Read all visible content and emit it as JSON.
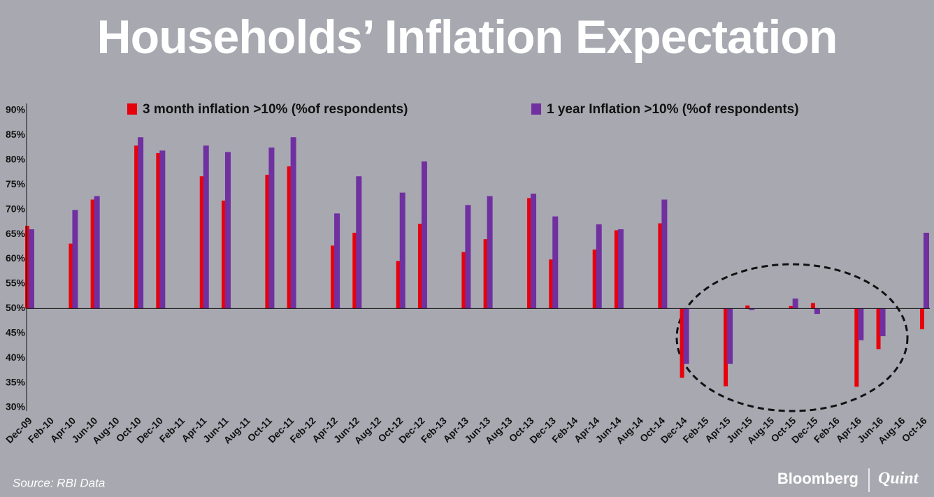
{
  "chart_data": {
    "type": "bar",
    "title": "Households’ Inflation Expectation",
    "categories": [
      "Dec-09",
      "Feb-10",
      "Apr-10",
      "Jun-10",
      "Aug-10",
      "Oct-10",
      "Dec-10",
      "Feb-11",
      "Apr-11",
      "Jun-11",
      "Aug-11",
      "Oct-11",
      "Dec-11",
      "Feb-12",
      "Apr-12",
      "Jun-12",
      "Aug-12",
      "Oct-12",
      "Dec-12",
      "Feb-13",
      "Apr-13",
      "Jun-13",
      "Aug-13",
      "Oct-13",
      "Dec-13",
      "Feb-14",
      "Apr-14",
      "Jun-14",
      "Aug-14",
      "Oct-14",
      "Dec-14",
      "Feb-15",
      "Apr-15",
      "Jun-15",
      "Aug-15",
      "Oct-15",
      "Dec-15",
      "Feb-16",
      "Apr-16",
      "Jun-16",
      "Aug-16",
      "Oct-16"
    ],
    "series": [
      {
        "name": "3 month inflation >10% (%of respondents)",
        "color": "#e8000b",
        "values": [
          66.7,
          null,
          63.1,
          72,
          null,
          82.9,
          81.4,
          null,
          76.7,
          71.8,
          null,
          77,
          78.7,
          null,
          62.7,
          65.3,
          null,
          59.6,
          67.1,
          null,
          61.4,
          64,
          null,
          72.3,
          59.9,
          null,
          61.9,
          65.8,
          null,
          67.2,
          36,
          null,
          34.3,
          50.6,
          null,
          50.5,
          51.1,
          null,
          34.2,
          41.8,
          null,
          45.8
        ]
      },
      {
        "name": "1 year Inflation >10% (%of respondents)",
        "color": "#7030a0",
        "values": [
          66,
          null,
          69.9,
          72.7,
          null,
          84.6,
          81.9,
          null,
          82.9,
          81.6,
          null,
          82.5,
          84.6,
          null,
          69.2,
          76.7,
          null,
          73.4,
          79.7,
          null,
          70.9,
          72.7,
          null,
          73.2,
          68.6,
          null,
          67,
          66,
          null,
          72,
          38.8,
          null,
          38.8,
          49.7,
          null,
          52,
          48.9,
          null,
          43.6,
          44.4,
          null,
          65.3
        ]
      }
    ],
    "bar_baseline": 50,
    "ylim": [
      30,
      90
    ],
    "yticks": [
      {
        "value": 30,
        "label": "30%"
      },
      {
        "value": 35,
        "label": "35%"
      },
      {
        "value": 40,
        "label": "40%"
      },
      {
        "value": 45,
        "label": "45%"
      },
      {
        "value": 50,
        "label": "50%"
      },
      {
        "value": 55,
        "label": "55%"
      },
      {
        "value": 60,
        "label": "60%"
      },
      {
        "value": 65,
        "label": "65%"
      },
      {
        "value": 70,
        "label": "70%"
      },
      {
        "value": 75,
        "label": "75%"
      },
      {
        "value": 80,
        "label": "80%"
      },
      {
        "value": 85,
        "label": "85%"
      },
      {
        "value": 90,
        "label": "90%"
      }
    ],
    "source": "Source: RBI Data",
    "logo": {
      "left": "Bloomberg",
      "right": "Quint"
    }
  }
}
